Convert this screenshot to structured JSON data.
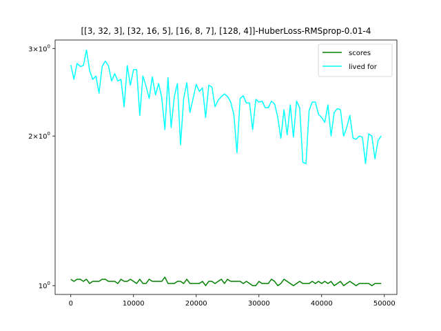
{
  "chart_data": {
    "type": "line",
    "title": "[[3, 32, 3], [32, 16, 5], [16, 8, 7], [128, 4]]-HuberLoss-RMSprop-0.01-4",
    "xlabel": "",
    "ylabel": "",
    "x_scale": "linear",
    "y_scale": "log",
    "xlim": [
      -2500,
      52000
    ],
    "ylim": [
      0.96,
      3.12
    ],
    "x_ticks": [
      0,
      10000,
      20000,
      30000,
      40000,
      50000
    ],
    "x_tick_labels": [
      "0",
      "10000",
      "20000",
      "30000",
      "40000",
      "50000"
    ],
    "y_ticks": [
      1,
      2,
      3
    ],
    "y_tick_labels": [
      "10^0",
      "2×10^0",
      "3×10^0"
    ],
    "grid": false,
    "legend_position": "upper right",
    "x": [
      0,
      500,
      1000,
      1500,
      2000,
      2500,
      3000,
      3500,
      4000,
      4500,
      5000,
      5500,
      6000,
      6500,
      7000,
      7500,
      8000,
      8500,
      9000,
      9500,
      10000,
      10500,
      11000,
      11500,
      12000,
      12500,
      13000,
      13500,
      14000,
      14500,
      15000,
      15500,
      16000,
      16500,
      17000,
      17500,
      18000,
      18500,
      19000,
      19500,
      20000,
      20500,
      21000,
      21500,
      22000,
      22500,
      23000,
      23500,
      24000,
      24500,
      25000,
      25500,
      26000,
      26500,
      27000,
      27500,
      28000,
      28500,
      29000,
      29500,
      30000,
      30500,
      31000,
      31500,
      32000,
      32500,
      33000,
      33500,
      34000,
      34500,
      35000,
      35500,
      36000,
      36500,
      37000,
      37500,
      38000,
      38500,
      39000,
      39500,
      40000,
      40500,
      41000,
      41500,
      42000,
      42500,
      43000,
      43500,
      44000,
      44500,
      45000,
      45500,
      46000,
      46500,
      47000,
      47500,
      48000,
      48500,
      49000,
      49500
    ],
    "series": [
      {
        "name": "scores",
        "color": "#008000",
        "values": [
          1.03,
          1.02,
          1.03,
          1.03,
          1.02,
          1.03,
          1.01,
          1.02,
          1.02,
          1.02,
          1.03,
          1.03,
          1.02,
          1.02,
          1.02,
          1.01,
          1.03,
          1.02,
          1.02,
          1.03,
          1.02,
          1.01,
          1.03,
          1.01,
          1.01,
          1.03,
          1.02,
          1.02,
          1.02,
          1.02,
          1.04,
          1.01,
          1.01,
          1.01,
          1.02,
          1.02,
          1.01,
          1.03,
          1.01,
          1.01,
          1.01,
          1.01,
          1.02,
          1.0,
          1.02,
          1.02,
          1.01,
          1.02,
          1.03,
          1.01,
          1.03,
          1.02,
          1.02,
          1.02,
          1.02,
          1.01,
          1.02,
          1.01,
          1.0,
          1.0,
          1.02,
          1.01,
          1.01,
          1.01,
          1.03,
          1.02,
          1.0,
          1.01,
          1.03,
          1.02,
          1.01,
          1.0,
          1.01,
          1.02,
          1.01,
          1.01,
          1.01,
          1.02,
          1.01,
          1.02,
          1.01,
          1.02,
          1.01,
          1.02,
          1.0,
          1.01,
          1.02,
          1.0,
          1.01,
          1.02,
          1.01,
          1.0,
          1.01,
          1.01,
          1.01,
          1.01,
          1.0,
          1.01,
          1.01,
          1.01
        ]
      },
      {
        "name": "lived for",
        "color": "#00ffff",
        "values": [
          2.78,
          2.6,
          2.8,
          2.76,
          2.77,
          2.98,
          2.71,
          2.6,
          2.64,
          2.44,
          2.76,
          2.83,
          2.77,
          2.58,
          2.67,
          2.58,
          2.6,
          2.29,
          2.77,
          2.53,
          2.72,
          2.72,
          2.2,
          2.64,
          2.52,
          2.38,
          2.63,
          2.42,
          2.55,
          2.39,
          2.06,
          2.62,
          2.08,
          2.4,
          2.55,
          1.92,
          2.38,
          2.56,
          2.23,
          2.38,
          2.54,
          2.46,
          2.5,
          2.18,
          2.53,
          2.51,
          2.29,
          2.36,
          2.4,
          2.43,
          2.4,
          2.34,
          2.21,
          1.85,
          2.38,
          2.41,
          2.33,
          2.33,
          2.06,
          2.37,
          2.34,
          2.35,
          2.28,
          2.28,
          2.35,
          2.32,
          2.18,
          1.98,
          2.26,
          2.01,
          2.31,
          1.99,
          2.35,
          2.28,
          1.77,
          1.76,
          2.25,
          2.34,
          2.34,
          2.21,
          2.18,
          2.13,
          2.31,
          2.0,
          2.23,
          2.27,
          2.26,
          2.0,
          2.08,
          2.2,
          1.98,
          1.97,
          2.0,
          1.99,
          1.76,
          2.02,
          2.0,
          1.8,
          1.96,
          2.0
        ]
      }
    ]
  }
}
